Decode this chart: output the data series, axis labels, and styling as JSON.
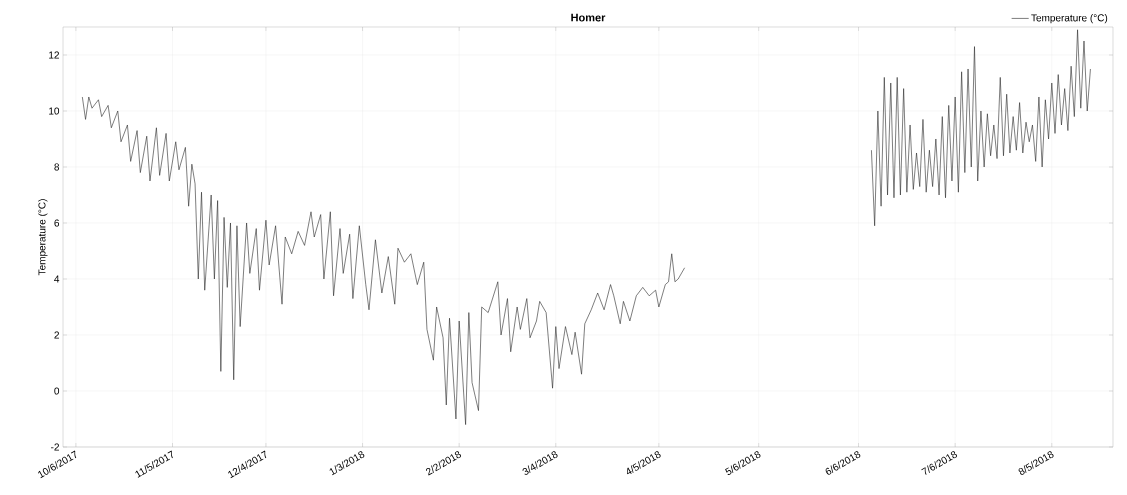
{
  "chart_data": {
    "type": "line",
    "title": "Homer",
    "ylabel": "Temperature (°C)",
    "xlim": [
      "2017-10-02",
      "2018-08-24"
    ],
    "ylim": [
      -2,
      13
    ],
    "xticks": [
      {
        "value": "2017-10-06",
        "label": "10/6/2017"
      },
      {
        "value": "2017-11-05",
        "label": "11/5/2017"
      },
      {
        "value": "2017-12-04",
        "label": "12/4/2017"
      },
      {
        "value": "2018-01-03",
        "label": "1/3/2018"
      },
      {
        "value": "2018-02-02",
        "label": "2/2/2018"
      },
      {
        "value": "2018-03-04",
        "label": "3/4/2018"
      },
      {
        "value": "2018-04-05",
        "label": "4/5/2018"
      },
      {
        "value": "2018-05-06",
        "label": "5/6/2018"
      },
      {
        "value": "2018-06-06",
        "label": "6/6/2018"
      },
      {
        "value": "2018-07-06",
        "label": "7/6/2018"
      },
      {
        "value": "2018-08-05",
        "label": "8/5/2018"
      }
    ],
    "yticks": [
      -2,
      0,
      2,
      4,
      6,
      8,
      10,
      12
    ],
    "grid": true,
    "legend": "top right",
    "marker": "none",
    "line_style": "solid",
    "series": [
      {
        "name": "Temperature (°C)",
        "color": "#262626",
        "x": [
          "2017-10-08",
          "2017-10-09",
          "2017-10-10",
          "2017-10-11",
          "2017-10-13",
          "2017-10-14",
          "2017-10-16",
          "2017-10-17",
          "2017-10-19",
          "2017-10-20",
          "2017-10-22",
          "2017-10-23",
          "2017-10-25",
          "2017-10-26",
          "2017-10-28",
          "2017-10-29",
          "2017-10-31",
          "2017-11-01",
          "2017-11-03",
          "2017-11-04",
          "2017-11-06",
          "2017-11-07",
          "2017-11-09",
          "2017-11-10",
          "2017-11-11",
          "2017-11-12",
          "2017-11-13",
          "2017-11-14",
          "2017-11-15",
          "2017-11-17",
          "2017-11-18",
          "2017-11-19",
          "2017-11-20",
          "2017-11-21",
          "2017-11-22",
          "2017-11-23",
          "2017-11-24",
          "2017-11-25",
          "2017-11-26",
          "2017-11-28",
          "2017-11-29",
          "2017-12-01",
          "2017-12-02",
          "2017-12-04",
          "2017-12-05",
          "2017-12-07",
          "2017-12-09",
          "2017-12-10",
          "2017-12-12",
          "2017-12-14",
          "2017-12-16",
          "2017-12-18",
          "2017-12-19",
          "2017-12-21",
          "2017-12-22",
          "2017-12-24",
          "2017-12-25",
          "2017-12-27",
          "2017-12-28",
          "2017-12-30",
          "2017-12-31",
          "2018-01-02",
          "2018-01-04",
          "2018-01-05",
          "2018-01-07",
          "2018-01-09",
          "2018-01-11",
          "2018-01-13",
          "2018-01-14",
          "2018-01-16",
          "2018-01-18",
          "2018-01-20",
          "2018-01-22",
          "2018-01-23",
          "2018-01-25",
          "2018-01-26",
          "2018-01-28",
          "2018-01-29",
          "2018-01-30",
          "2018-02-01",
          "2018-02-02",
          "2018-02-04",
          "2018-02-05",
          "2018-02-06",
          "2018-02-08",
          "2018-02-09",
          "2018-02-11",
          "2018-02-14",
          "2018-02-15",
          "2018-02-17",
          "2018-02-18",
          "2018-02-20",
          "2018-02-21",
          "2018-02-23",
          "2018-02-24",
          "2018-02-26",
          "2018-02-27",
          "2018-03-01",
          "2018-03-03",
          "2018-03-04",
          "2018-03-05",
          "2018-03-07",
          "2018-03-09",
          "2018-03-10",
          "2018-03-12",
          "2018-03-13",
          "2018-03-15",
          "2018-03-17",
          "2018-03-19",
          "2018-03-21",
          "2018-03-22",
          "2018-03-24",
          "2018-03-25",
          "2018-03-27",
          "2018-03-29",
          "2018-03-31",
          "2018-04-02",
          "2018-04-04",
          "2018-04-05",
          "2018-04-07",
          "2018-04-08",
          "2018-04-09",
          "2018-04-10",
          "2018-04-11",
          "2018-04-13",
          "2018-05-15",
          "2018-06-10",
          "2018-06-11",
          "2018-06-12",
          "2018-06-13",
          "2018-06-14",
          "2018-06-15",
          "2018-06-16",
          "2018-06-17",
          "2018-06-18",
          "2018-06-19",
          "2018-06-20",
          "2018-06-21",
          "2018-06-22",
          "2018-06-23",
          "2018-06-24",
          "2018-06-25",
          "2018-06-26",
          "2018-06-27",
          "2018-06-28",
          "2018-06-29",
          "2018-06-30",
          "2018-07-01",
          "2018-07-02",
          "2018-07-03",
          "2018-07-04",
          "2018-07-05",
          "2018-07-06",
          "2018-07-07",
          "2018-07-08",
          "2018-07-09",
          "2018-07-10",
          "2018-07-11",
          "2018-07-12",
          "2018-07-13",
          "2018-07-14",
          "2018-07-15",
          "2018-07-16",
          "2018-07-17",
          "2018-07-18",
          "2018-07-19",
          "2018-07-20",
          "2018-07-21",
          "2018-07-22",
          "2018-07-23",
          "2018-07-24",
          "2018-07-25",
          "2018-07-26",
          "2018-07-27",
          "2018-07-28",
          "2018-07-29",
          "2018-07-30",
          "2018-07-31",
          "2018-08-01",
          "2018-08-02",
          "2018-08-03",
          "2018-08-04",
          "2018-08-05",
          "2018-08-06",
          "2018-08-07",
          "2018-08-08",
          "2018-08-09",
          "2018-08-10",
          "2018-08-11",
          "2018-08-12",
          "2018-08-13",
          "2018-08-14",
          "2018-08-15",
          "2018-08-16",
          "2018-08-17"
        ],
        "values": [
          10.5,
          9.7,
          10.5,
          10.1,
          10.4,
          9.8,
          10.2,
          9.4,
          10.0,
          8.9,
          9.5,
          8.2,
          9.3,
          7.8,
          9.1,
          7.5,
          9.4,
          7.7,
          9.2,
          7.5,
          8.9,
          7.9,
          8.7,
          6.6,
          8.1,
          7.4,
          4.0,
          7.1,
          3.6,
          7.0,
          4.0,
          6.8,
          0.7,
          6.2,
          3.7,
          6.0,
          0.4,
          5.9,
          2.3,
          6.0,
          4.2,
          5.8,
          3.6,
          6.1,
          4.5,
          5.9,
          3.1,
          5.5,
          4.9,
          5.7,
          5.2,
          6.4,
          5.5,
          6.3,
          4.0,
          6.4,
          3.4,
          5.8,
          4.2,
          5.6,
          3.3,
          5.9,
          3.8,
          2.9,
          5.4,
          3.5,
          4.8,
          3.1,
          5.1,
          4.6,
          4.9,
          3.8,
          4.6,
          2.2,
          1.1,
          3.0,
          1.9,
          -0.5,
          2.6,
          -1.0,
          2.5,
          -1.2,
          2.8,
          0.3,
          -0.7,
          3.0,
          2.8,
          3.9,
          2.0,
          3.3,
          1.4,
          3.0,
          2.2,
          3.3,
          1.9,
          2.5,
          3.2,
          2.8,
          0.1,
          2.3,
          0.8,
          2.3,
          1.3,
          2.1,
          0.6,
          2.4,
          2.9,
          3.5,
          2.9,
          3.8,
          3.4,
          2.4,
          3.2,
          2.5,
          3.4,
          3.7,
          3.4,
          3.6,
          3.0,
          3.8,
          3.9,
          4.9,
          3.9,
          4.0,
          4.4,
          null,
          8.6,
          5.9,
          10.0,
          6.6,
          11.2,
          7.0,
          11.0,
          6.9,
          11.2,
          7.0,
          10.8,
          7.1,
          9.5,
          7.2,
          8.5,
          7.3,
          9.7,
          7.1,
          8.6,
          7.3,
          9.0,
          7.0,
          9.8,
          6.9,
          10.2,
          7.5,
          10.5,
          7.1,
          11.4,
          7.8,
          11.5,
          8.0,
          12.3,
          7.5,
          10.0,
          8.0,
          9.9,
          8.4,
          9.5,
          8.3,
          11.2,
          8.4,
          10.6,
          8.5,
          9.8,
          8.6,
          10.3,
          8.5,
          9.6,
          8.9,
          9.5,
          8.2,
          10.5,
          8.0,
          10.4,
          9.0,
          11.0,
          9.2,
          11.3,
          9.5,
          10.8,
          9.3,
          11.6,
          9.8,
          12.9,
          10.1,
          12.5,
          10.0,
          11.5
        ]
      }
    ]
  }
}
